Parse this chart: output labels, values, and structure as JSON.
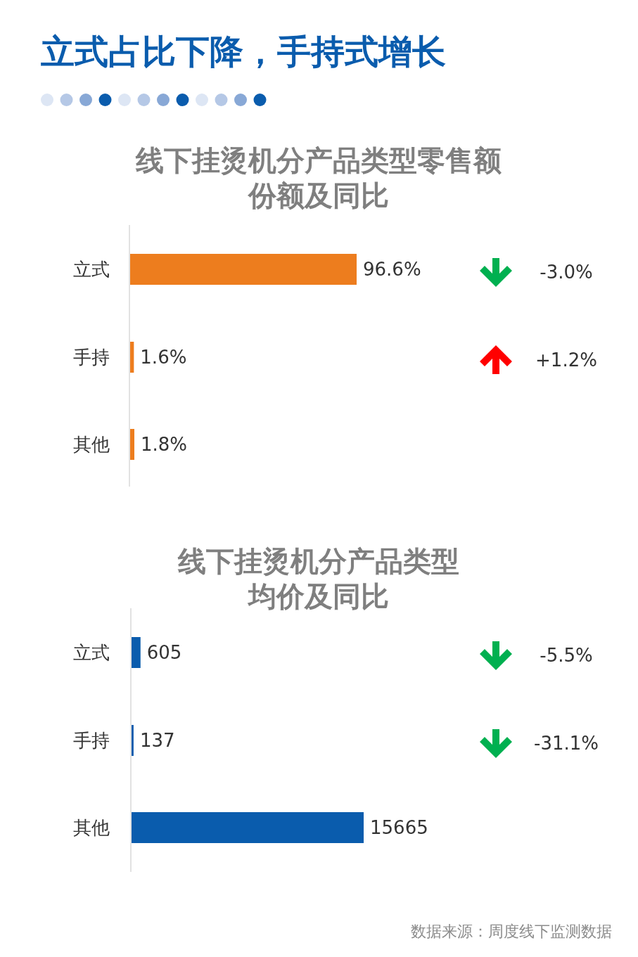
{
  "chart_data": [
    {
      "type": "bar",
      "orientation": "horizontal",
      "title": "立式占比下降，手持式增长",
      "subtitle": "线下挂烫机分产品类型零售额份额及同比",
      "categories": [
        "立式",
        "手持",
        "其他"
      ],
      "values": [
        96.6,
        1.6,
        1.8
      ],
      "color": "#ed7d1e",
      "value_labels": [
        "96.6%",
        "1.6%",
        "1.8%"
      ],
      "annotations": [
        "-3.0%",
        "+1.2%"
      ]
    },
    {
      "type": "bar",
      "orientation": "horizontal",
      "subtitle": "线下挂烫机分产品类型均价及同比",
      "categories": [
        "立式",
        "手持",
        "其他"
      ],
      "values": [
        605,
        137,
        15665
      ],
      "color": "#0a5cad",
      "data_labels": true,
      "annotations": [
        "-5.5%",
        "-31.1%"
      ]
    },
    {
      "type": "other",
      "annotations": [
        "数据来源：周度线下监测数据"
      ]
    }
  ]
}
